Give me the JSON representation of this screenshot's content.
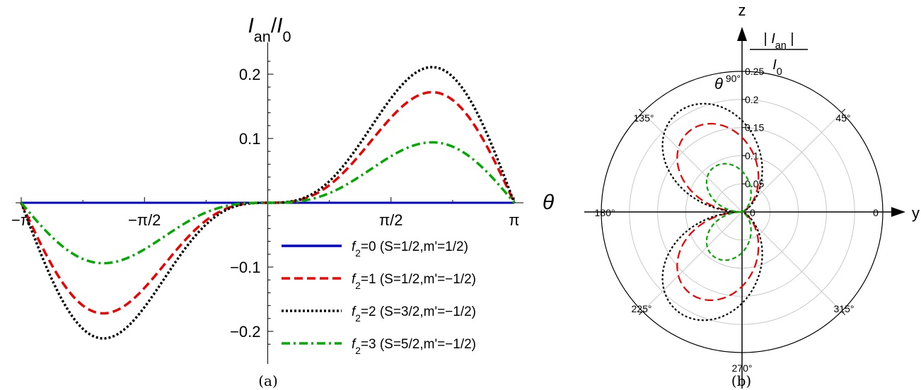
{
  "chart_data": [
    {
      "type": "line",
      "panel_label": "(a)",
      "ylabel": {
        "main": "I",
        "sub": "an",
        "sep": "/",
        "main2": "I",
        "sub2": "0"
      },
      "xlabel": "θ",
      "xlim": [
        -3.14159,
        3.14159
      ],
      "ylim": [
        -0.23,
        0.23
      ],
      "x_ticks": [
        {
          "value": -3.14159,
          "label": "−π"
        },
        {
          "value": -1.5708,
          "label": "−π/2"
        },
        {
          "value": 1.5708,
          "label": "π/2"
        },
        {
          "value": 3.14159,
          "label": "π"
        }
      ],
      "y_ticks": [
        {
          "value": 0.2,
          "label": "0.2"
        },
        {
          "value": 0.1,
          "label": "0.1"
        },
        {
          "value": -0.1,
          "label": "−0.1"
        },
        {
          "value": -0.2,
          "label": "−0.2"
        }
      ],
      "series": [
        {
          "name_prefix": "f",
          "name_sub": "2",
          "name_rest": "=0 (S=1/2,m'=1/2)",
          "color": "#0000cc",
          "style": "solid",
          "amplitude": 0.0
        },
        {
          "name_prefix": "f",
          "name_sub": "2",
          "name_rest": "=1 (S=1/2,m'=−1/2)",
          "color": "#ee0000",
          "style": "dashed",
          "amplitude": 0.172
        },
        {
          "name_prefix": "f",
          "name_sub": "2",
          "name_rest": "=2 (S=3/2,m'=−1/2)",
          "color": "#000000",
          "style": "dotted",
          "amplitude": 0.211
        },
        {
          "name_prefix": "f",
          "name_sub": "2",
          "name_rest": "=3 (S=5/2,m'=−1/2)",
          "color": "#00aa00",
          "style": "dashdot",
          "amplitude": 0.094
        }
      ],
      "curve_shape": "y = A · (1 − cos θ) · sin θ / 1.299 (peak at θ = 2π/3)",
      "legend_position": "lower-right"
    },
    {
      "type": "polar",
      "panel_label": "(b)",
      "z_axis_label": "z",
      "y_axis_label": "y",
      "theta_label": "θ",
      "r_label": {
        "bar": "|",
        "main": "I",
        "sub": "an",
        "bar2": "|",
        "denom": "I",
        "denom_sub": "0"
      },
      "r_max": 0.25,
      "r_ticks": [
        {
          "value": 0.05,
          "label": "0.05"
        },
        {
          "value": 0.1,
          "label": "0.1"
        },
        {
          "value": 0.15,
          "label": "0.15"
        },
        {
          "value": 0.2,
          "label": "0.2"
        },
        {
          "value": 0.25,
          "label": "0.25"
        }
      ],
      "r_zero_label": "0",
      "angle_ticks": [
        {
          "deg": 0,
          "label": "0"
        },
        {
          "deg": 45,
          "label": "45°"
        },
        {
          "deg": 90,
          "label": "90°"
        },
        {
          "deg": 135,
          "label": "135°"
        },
        {
          "deg": 180,
          "label": "180°"
        },
        {
          "deg": 225,
          "label": "225°"
        },
        {
          "deg": 270,
          "label": "270°"
        },
        {
          "deg": 315,
          "label": "315°"
        }
      ],
      "series": [
        {
          "color": "#ee0000",
          "style": "dashed",
          "amplitude": 0.172
        },
        {
          "color": "#000000",
          "style": "dotted",
          "amplitude": 0.211
        },
        {
          "color": "#00aa00",
          "style": "dashed-short",
          "amplitude": 0.094
        }
      ],
      "curve_shape": "r = |A · (1 − cos φ) · sin φ| / 1.299, φ measured from y toward z"
    }
  ]
}
